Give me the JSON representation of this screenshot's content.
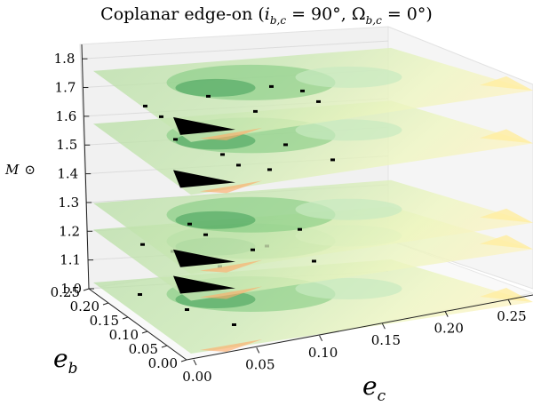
{
  "chart_data": {
    "type": "surface3d",
    "title": "Coplanar edge-on (i_{b,c} = 90°, Ω_{b,c} = 0°)",
    "title_parts": {
      "prefix": "Coplanar edge-on (",
      "i_var": "i",
      "sub": "b,c",
      "i_rest": " = 90°, ",
      "omega_var": "Ω",
      "omega_rest": " = 0°)"
    },
    "xlabel": "e_c",
    "ylabel": "e_b",
    "zlabel": "M ⊙",
    "label_parts": {
      "x_var": "e",
      "x_sub": "c",
      "y_var": "e",
      "y_sub": "b",
      "z_var": "M",
      "z_sym": "⊙"
    },
    "xlim": [
      0.0,
      0.25
    ],
    "ylim": [
      0.0,
      0.25
    ],
    "zlim": [
      1.0,
      1.85
    ],
    "x_ticks": [
      "0.00",
      "0.05",
      "0.10",
      "0.15",
      "0.20",
      "0.25"
    ],
    "y_ticks": [
      "0.00",
      "0.05",
      "0.10",
      "0.15",
      "0.20",
      "0.25"
    ],
    "z_ticks": [
      "1.0",
      "1.1",
      "1.2",
      "1.3",
      "1.4",
      "1.5",
      "1.6",
      "1.7",
      "1.8"
    ],
    "colormap": [
      "#00441b",
      "#2a924a",
      "#7bc87c",
      "#c7e9c0",
      "#f7fcb9",
      "#ffeda0",
      "#fdae6b",
      "#f16913",
      "#000000"
    ],
    "grid": true,
    "series": [
      {
        "name": "M = 1.0",
        "z": 1.0
      },
      {
        "name": "M = 1.2",
        "z": 1.2
      },
      {
        "name": "M = 1.3",
        "z": 1.3
      },
      {
        "name": "M = 1.6",
        "z": 1.6
      },
      {
        "name": "M = 1.8",
        "z": 1.8
      }
    ]
  }
}
